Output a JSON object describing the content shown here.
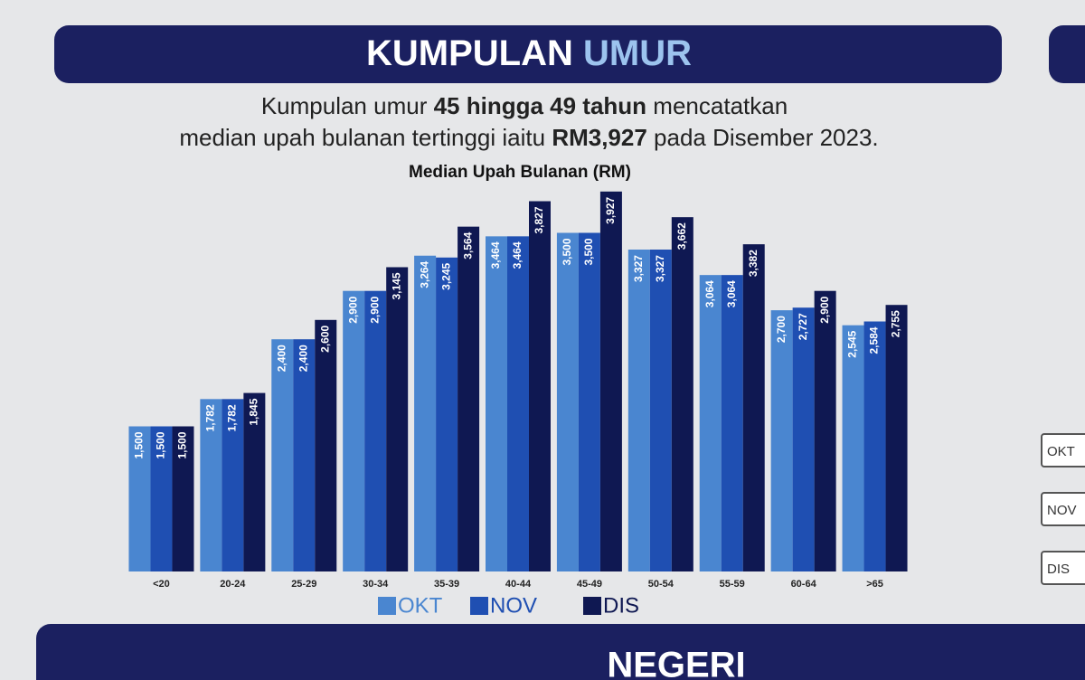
{
  "header": {
    "title_main": "KUMPULAN",
    "title_accent": "UMUR"
  },
  "subtitle": {
    "line1": [
      "Kumpulan umur ",
      "45 hingga 49 tahun",
      " mencatatkan"
    ],
    "line2": [
      "median upah bulanan tertinggi iaitu ",
      "RM3,927",
      " pada Disember 2023."
    ]
  },
  "chart_data": {
    "type": "bar",
    "title": "Median Upah Bulanan (RM)",
    "categories": [
      "<20",
      "20-24",
      "25-29",
      "30-34",
      "35-39",
      "40-44",
      "45-49",
      "50-54",
      "55-59",
      "60-64",
      ">65"
    ],
    "series": [
      {
        "name": "OKT",
        "color": "#4a86d0",
        "values": [
          1500,
          1782,
          2400,
          2900,
          3264,
          3464,
          3500,
          3327,
          3064,
          2700,
          2545
        ],
        "value_labels": [
          "1,500",
          "1,782",
          "2,400",
          "2,900",
          "3,264",
          "3,464",
          "3,500",
          "3,327",
          "3,064",
          "2,700",
          "2,545"
        ]
      },
      {
        "name": "NOV",
        "color": "#1f4fb2",
        "values": [
          1500,
          1782,
          2400,
          2900,
          3245,
          3464,
          3500,
          3327,
          3064,
          2727,
          2584
        ],
        "value_labels": [
          "1,500",
          "1,782",
          "2,400",
          "2,900",
          "3,245",
          "3,464",
          "3,500",
          "3,327",
          "3,064",
          "2,727",
          "2,584"
        ]
      },
      {
        "name": "DIS",
        "color": "#0f1852",
        "values": [
          1500,
          1845,
          2600,
          3145,
          3564,
          3827,
          3927,
          3662,
          3382,
          2900,
          2755
        ],
        "value_labels": [
          "1,500",
          "1,845",
          "2,600",
          "3,145",
          "3,564",
          "3,827",
          "3,927",
          "3,662",
          "3,382",
          "2,900",
          "2,755"
        ]
      }
    ],
    "ylim": [
      0,
      4000
    ]
  },
  "side_labels": [
    "OKT",
    "NOV",
    "DIS"
  ],
  "footer": {
    "title": "NEGERI"
  }
}
